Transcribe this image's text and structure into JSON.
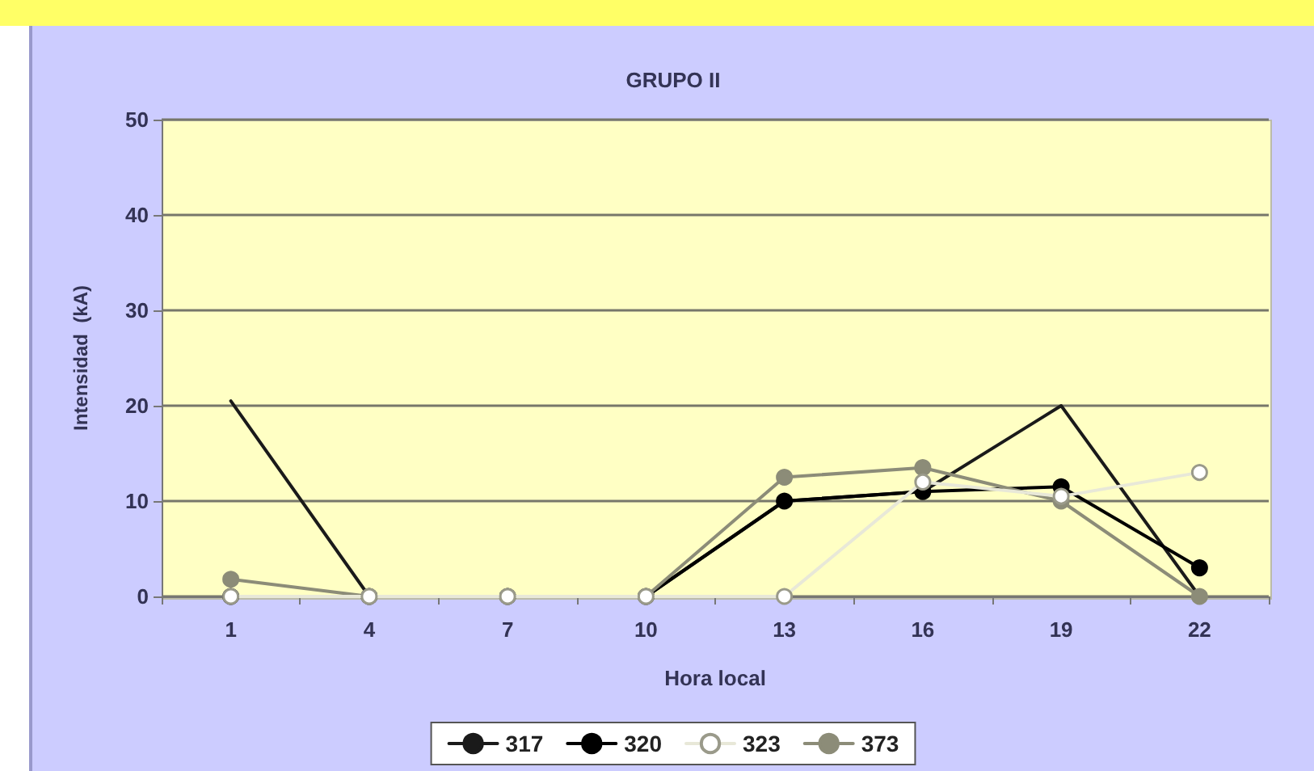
{
  "chart_data": {
    "type": "line",
    "title": "GRUPO II",
    "xlabel": "Hora local",
    "ylabel": "Intensidad  (kA)",
    "categories": [
      "1",
      "4",
      "7",
      "10",
      "13",
      "16",
      "19",
      "22"
    ],
    "series": [
      {
        "name": "317",
        "color": "#1a1a1a",
        "marker": "none",
        "values": [
          20.5,
          0,
          0,
          0,
          10,
          11,
          20,
          0
        ]
      },
      {
        "name": "320",
        "color": "#000000",
        "marker": "circle",
        "values": [
          0,
          0,
          0,
          0,
          10,
          11,
          11.5,
          3
        ]
      },
      {
        "name": "323",
        "color": "#ffffff",
        "marker": "circle",
        "values": [
          0,
          0,
          0,
          0,
          0,
          12,
          10.5,
          13
        ]
      },
      {
        "name": "373",
        "color": "#8c8c78",
        "marker": "circle",
        "values": [
          1.8,
          0,
          0,
          0,
          12.5,
          13.5,
          10,
          0
        ]
      }
    ],
    "ylim": [
      0,
      50
    ],
    "yticks": [
      0,
      10,
      20,
      30,
      40,
      50
    ],
    "grid": "y",
    "legend": "bottom"
  }
}
